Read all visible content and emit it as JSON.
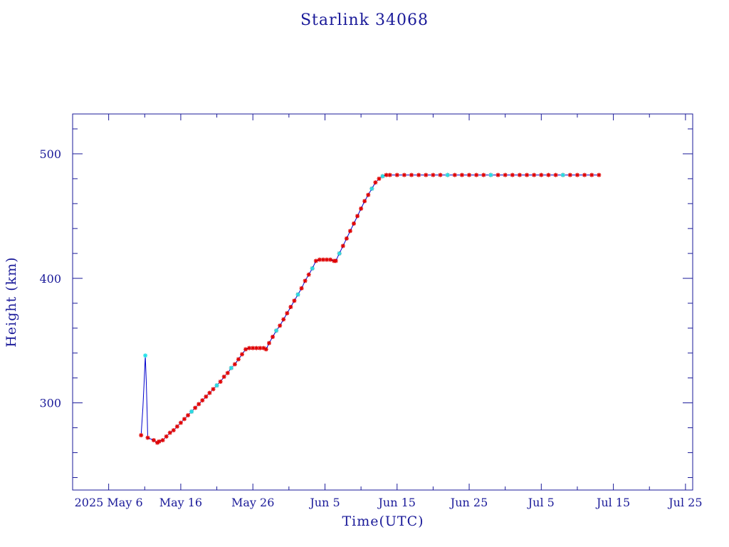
{
  "chart_data": {
    "type": "line",
    "title": "Starlink 34068",
    "xlabel": "Time(UTC)",
    "ylabel": "Height (km)",
    "x_unit": "date (2025, UTC)",
    "xlim": [
      "2025-05-01",
      "2025-07-26"
    ],
    "ylim": [
      230,
      532
    ],
    "x_ticks": [
      {
        "date": "2025-05-06",
        "label": "2025 May  6"
      },
      {
        "date": "2025-05-16",
        "label": "May 16"
      },
      {
        "date": "2025-05-26",
        "label": "May 26"
      },
      {
        "date": "2025-06-05",
        "label": "Jun  5"
      },
      {
        "date": "2025-06-15",
        "label": "Jun 15"
      },
      {
        "date": "2025-06-25",
        "label": "Jun 25"
      },
      {
        "date": "2025-07-05",
        "label": "Jul  5"
      },
      {
        "date": "2025-07-15",
        "label": "Jul 15"
      },
      {
        "date": "2025-07-25",
        "label": "Jul 25"
      }
    ],
    "y_ticks": [
      300,
      400,
      500
    ],
    "grid": false,
    "colors": {
      "frame": "#1a1a99",
      "line": "#0000cc",
      "marker": "#e00000",
      "marker_alt": "#22e0e8",
      "text": "#1a1a99"
    },
    "series": [
      {
        "marker": "star",
        "points": [
          [
            "2025-05-10T12:00",
            274
          ],
          [
            "2025-05-10T18:00",
            296
          ],
          [
            "2025-05-10T22:00",
            316
          ],
          [
            "2025-05-11T02:00",
            338
          ],
          [
            "2025-05-11T05:00",
            318
          ],
          [
            "2025-05-11T08:00",
            292
          ],
          [
            "2025-05-11T10:00",
            272
          ],
          [
            "2025-05-12T06:00",
            270
          ],
          [
            "2025-05-12T18:00",
            268
          ],
          [
            "2025-05-13T00:00",
            269
          ],
          [
            "2025-05-13T12:00",
            270
          ],
          [
            "2025-05-14T00:00",
            273
          ],
          [
            "2025-05-14T12:00",
            276
          ],
          [
            "2025-05-15T00:00",
            278
          ],
          [
            "2025-05-15T12:00",
            281
          ],
          [
            "2025-05-16T00:00",
            284
          ],
          [
            "2025-05-16T12:00",
            287
          ],
          [
            "2025-05-17T00:00",
            290
          ],
          [
            "2025-05-17T12:00",
            293
          ],
          [
            "2025-05-18T00:00",
            296
          ],
          [
            "2025-05-18T12:00",
            299
          ],
          [
            "2025-05-19T00:00",
            302
          ],
          [
            "2025-05-19T12:00",
            305
          ],
          [
            "2025-05-20T00:00",
            308
          ],
          [
            "2025-05-20T12:00",
            311
          ],
          [
            "2025-05-21T00:00",
            314
          ],
          [
            "2025-05-21T12:00",
            317
          ],
          [
            "2025-05-22T00:00",
            321
          ],
          [
            "2025-05-22T12:00",
            324
          ],
          [
            "2025-05-23T00:00",
            328
          ],
          [
            "2025-05-23T12:00",
            331
          ],
          [
            "2025-05-24T00:00",
            335
          ],
          [
            "2025-05-24T12:00",
            339
          ],
          [
            "2025-05-25T00:00",
            343
          ],
          [
            "2025-05-25T12:00",
            344
          ],
          [
            "2025-05-26T00:00",
            344
          ],
          [
            "2025-05-26T12:00",
            344
          ],
          [
            "2025-05-27T00:00",
            344
          ],
          [
            "2025-05-27T12:00",
            344
          ],
          [
            "2025-05-27T20:00",
            343
          ],
          [
            "2025-05-28T06:00",
            348
          ],
          [
            "2025-05-28T18:00",
            353
          ],
          [
            "2025-05-29T06:00",
            358
          ],
          [
            "2025-05-29T18:00",
            362
          ],
          [
            "2025-05-30T06:00",
            367
          ],
          [
            "2025-05-30T18:00",
            372
          ],
          [
            "2025-05-31T06:00",
            377
          ],
          [
            "2025-05-31T18:00",
            382
          ],
          [
            "2025-06-01T06:00",
            387
          ],
          [
            "2025-06-01T18:00",
            392
          ],
          [
            "2025-06-02T06:00",
            398
          ],
          [
            "2025-06-02T18:00",
            403
          ],
          [
            "2025-06-03T06:00",
            408
          ],
          [
            "2025-06-03T18:00",
            414
          ],
          [
            "2025-06-04T06:00",
            415
          ],
          [
            "2025-06-04T18:00",
            415
          ],
          [
            "2025-06-05T06:00",
            415
          ],
          [
            "2025-06-05T18:00",
            415
          ],
          [
            "2025-06-06T06:00",
            414
          ],
          [
            "2025-06-06T12:00",
            414
          ],
          [
            "2025-06-07T00:00",
            420
          ],
          [
            "2025-06-07T12:00",
            426
          ],
          [
            "2025-06-08T00:00",
            432
          ],
          [
            "2025-06-08T12:00",
            438
          ],
          [
            "2025-06-09T00:00",
            444
          ],
          [
            "2025-06-09T12:00",
            450
          ],
          [
            "2025-06-10T00:00",
            456
          ],
          [
            "2025-06-10T12:00",
            462
          ],
          [
            "2025-06-11T00:00",
            467
          ],
          [
            "2025-06-11T12:00",
            472
          ],
          [
            "2025-06-12T00:00",
            477
          ],
          [
            "2025-06-12T12:00",
            480
          ],
          [
            "2025-06-13T00:00",
            482
          ],
          [
            "2025-06-13T12:00",
            483
          ],
          [
            "2025-06-14T00:00",
            483
          ],
          [
            "2025-06-15T00:00",
            483
          ],
          [
            "2025-06-16T00:00",
            483
          ],
          [
            "2025-06-17T00:00",
            483
          ],
          [
            "2025-06-18T00:00",
            483
          ],
          [
            "2025-06-19T00:00",
            483
          ],
          [
            "2025-06-20T00:00",
            483
          ],
          [
            "2025-06-21T00:00",
            483
          ],
          [
            "2025-06-22T00:00",
            483
          ],
          [
            "2025-06-23T00:00",
            483
          ],
          [
            "2025-06-24T00:00",
            483
          ],
          [
            "2025-06-25T00:00",
            483
          ],
          [
            "2025-06-26T00:00",
            483
          ],
          [
            "2025-06-27T00:00",
            483
          ],
          [
            "2025-06-28T00:00",
            483
          ],
          [
            "2025-06-29T00:00",
            483
          ],
          [
            "2025-06-30T00:00",
            483
          ],
          [
            "2025-07-01T00:00",
            483
          ],
          [
            "2025-07-02T00:00",
            483
          ],
          [
            "2025-07-03T00:00",
            483
          ],
          [
            "2025-07-04T00:00",
            483
          ],
          [
            "2025-07-05T00:00",
            483
          ],
          [
            "2025-07-06T00:00",
            483
          ],
          [
            "2025-07-07T00:00",
            483
          ],
          [
            "2025-07-08T00:00",
            483
          ],
          [
            "2025-07-09T00:00",
            483
          ],
          [
            "2025-07-10T00:00",
            483
          ],
          [
            "2025-07-11T00:00",
            483
          ],
          [
            "2025-07-12T00:00",
            483
          ],
          [
            "2025-07-13T00:00",
            483
          ]
        ]
      }
    ],
    "alt_marker_points": [
      [
        "2025-05-11T02:00",
        338
      ],
      [
        "2025-05-17T12:00",
        293
      ],
      [
        "2025-05-21T00:00",
        314
      ],
      [
        "2025-05-23T00:00",
        328
      ],
      [
        "2025-05-29T06:00",
        358
      ],
      [
        "2025-06-01T06:00",
        387
      ],
      [
        "2025-06-03T06:00",
        408
      ],
      [
        "2025-06-07T00:00",
        420
      ],
      [
        "2025-06-11T12:00",
        472
      ],
      [
        "2025-06-13T00:00",
        482
      ],
      [
        "2025-06-22T00:00",
        483
      ],
      [
        "2025-06-28T00:00",
        483
      ],
      [
        "2025-07-08T00:00",
        483
      ]
    ]
  }
}
